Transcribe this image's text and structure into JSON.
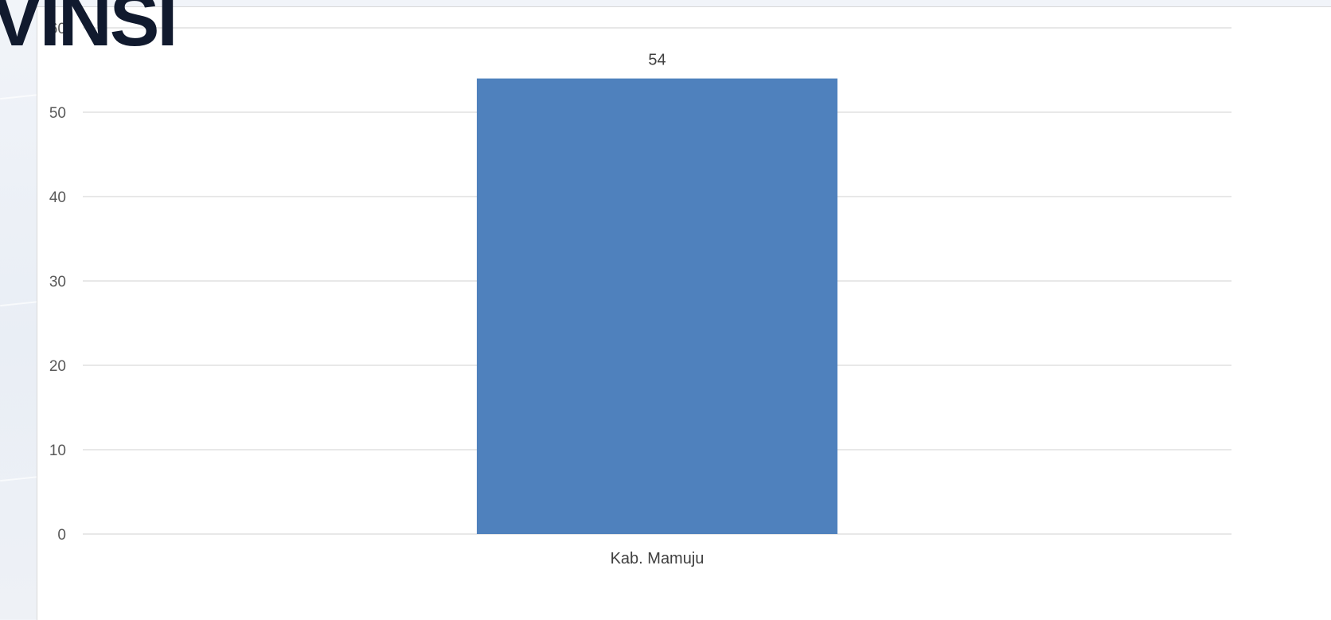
{
  "slide": {
    "title_fragment": "VINSI"
  },
  "chart_data": {
    "type": "bar",
    "categories": [
      "Kab. Mamuju"
    ],
    "values": [
      54
    ],
    "ylim": [
      0,
      60
    ],
    "yticks": [
      0,
      10,
      20,
      30,
      40,
      50,
      60
    ],
    "data_labels": true,
    "grid": true,
    "legend": "none",
    "bar_color": "#4f81bd"
  }
}
